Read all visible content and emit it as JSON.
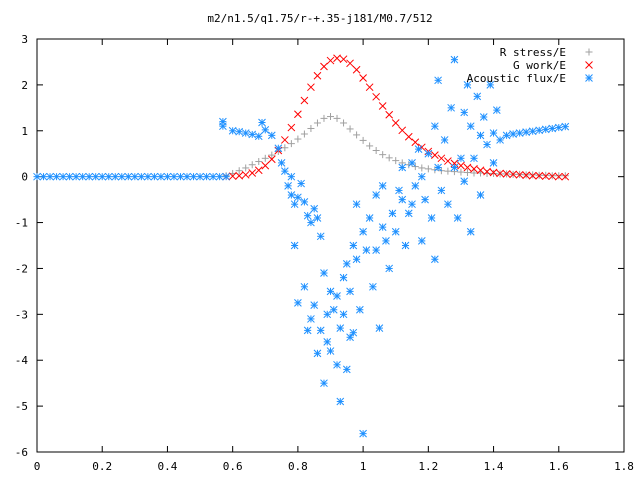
{
  "chart_data": {
    "type": "scatter",
    "title": "m2/n1.5/q1.75/r-+.35-j181/M0.7/512",
    "xlabel": "",
    "ylabel": "",
    "xlim": [
      0,
      1.8
    ],
    "ylim": [
      -6,
      3
    ],
    "x_ticks": [
      "0",
      "0.2",
      "0.4",
      "0.6",
      "0.8",
      "1",
      "1.2",
      "1.4",
      "1.6",
      "1.8"
    ],
    "y_ticks": [
      "3",
      "2",
      "1",
      "0",
      "-1",
      "-2",
      "-3",
      "-4",
      "-5",
      "-6"
    ],
    "grid": false,
    "legend_position": "top-right",
    "series": [
      {
        "name": "R stress/E",
        "marker": "plus",
        "color": "#a0a0a0",
        "points": [
          [
            0.58,
            0.02
          ],
          [
            0.6,
            0.07
          ],
          [
            0.62,
            0.13
          ],
          [
            0.64,
            0.19
          ],
          [
            0.66,
            0.26
          ],
          [
            0.68,
            0.33
          ],
          [
            0.7,
            0.4
          ],
          [
            0.72,
            0.47
          ],
          [
            0.74,
            0.55
          ],
          [
            0.76,
            0.63
          ],
          [
            0.78,
            0.72
          ],
          [
            0.8,
            0.82
          ],
          [
            0.82,
            0.93
          ],
          [
            0.84,
            1.05
          ],
          [
            0.86,
            1.17
          ],
          [
            0.88,
            1.27
          ],
          [
            0.9,
            1.31
          ],
          [
            0.92,
            1.27
          ],
          [
            0.94,
            1.17
          ],
          [
            0.96,
            1.04
          ],
          [
            0.98,
            0.91
          ],
          [
            1.0,
            0.79
          ],
          [
            1.02,
            0.67
          ],
          [
            1.04,
            0.57
          ],
          [
            1.06,
            0.48
          ],
          [
            1.08,
            0.41
          ],
          [
            1.1,
            0.35
          ],
          [
            1.12,
            0.3
          ],
          [
            1.14,
            0.26
          ],
          [
            1.16,
            0.22
          ],
          [
            1.18,
            0.19
          ],
          [
            1.2,
            0.17
          ],
          [
            1.22,
            0.15
          ],
          [
            1.24,
            0.13
          ],
          [
            1.26,
            0.12
          ],
          [
            1.28,
            0.11
          ],
          [
            1.3,
            0.1
          ],
          [
            1.32,
            0.09
          ],
          [
            1.34,
            0.08
          ],
          [
            1.36,
            0.08
          ],
          [
            1.38,
            0.07
          ],
          [
            1.4,
            0.07
          ],
          [
            1.42,
            0.06
          ],
          [
            1.44,
            0.06
          ],
          [
            1.46,
            0.05
          ],
          [
            1.48,
            0.05
          ],
          [
            1.5,
            0.04
          ],
          [
            1.52,
            0.04
          ],
          [
            1.54,
            0.03
          ],
          [
            1.56,
            0.03
          ],
          [
            1.58,
            0.02
          ],
          [
            1.6,
            0.02
          ],
          [
            1.62,
            0.02
          ]
        ]
      },
      {
        "name": "G work/E",
        "marker": "cross",
        "color": "#ff0000",
        "points": [
          [
            0.58,
            0.0
          ],
          [
            0.6,
            0.01
          ],
          [
            0.62,
            0.02
          ],
          [
            0.64,
            0.04
          ],
          [
            0.66,
            0.08
          ],
          [
            0.68,
            0.14
          ],
          [
            0.7,
            0.24
          ],
          [
            0.72,
            0.38
          ],
          [
            0.74,
            0.57
          ],
          [
            0.76,
            0.8
          ],
          [
            0.78,
            1.07
          ],
          [
            0.8,
            1.36
          ],
          [
            0.82,
            1.66
          ],
          [
            0.84,
            1.95
          ],
          [
            0.86,
            2.2
          ],
          [
            0.88,
            2.4
          ],
          [
            0.9,
            2.53
          ],
          [
            0.92,
            2.58
          ],
          [
            0.94,
            2.56
          ],
          [
            0.96,
            2.47
          ],
          [
            0.98,
            2.33
          ],
          [
            1.0,
            2.15
          ],
          [
            1.02,
            1.95
          ],
          [
            1.04,
            1.74
          ],
          [
            1.06,
            1.54
          ],
          [
            1.08,
            1.35
          ],
          [
            1.1,
            1.17
          ],
          [
            1.12,
            1.01
          ],
          [
            1.14,
            0.87
          ],
          [
            1.16,
            0.75
          ],
          [
            1.18,
            0.64
          ],
          [
            1.2,
            0.55
          ],
          [
            1.22,
            0.47
          ],
          [
            1.24,
            0.4
          ],
          [
            1.26,
            0.34
          ],
          [
            1.28,
            0.29
          ],
          [
            1.3,
            0.24
          ],
          [
            1.32,
            0.2
          ],
          [
            1.34,
            0.17
          ],
          [
            1.36,
            0.14
          ],
          [
            1.38,
            0.11
          ],
          [
            1.4,
            0.09
          ],
          [
            1.42,
            0.07
          ],
          [
            1.44,
            0.06
          ],
          [
            1.46,
            0.05
          ],
          [
            1.48,
            0.04
          ],
          [
            1.5,
            0.03
          ],
          [
            1.52,
            0.02
          ],
          [
            1.54,
            0.02
          ],
          [
            1.56,
            0.01
          ],
          [
            1.58,
            0.01
          ],
          [
            1.6,
            0.0
          ],
          [
            1.62,
            0.0
          ]
        ]
      },
      {
        "name": "Acoustic flux/E",
        "marker": "star",
        "color": "#1e90ff",
        "points": [
          [
            0.57,
            1.2
          ],
          [
            0.57,
            1.1
          ],
          [
            0.6,
            1.0
          ],
          [
            0.62,
            0.98
          ],
          [
            0.64,
            0.95
          ],
          [
            0.66,
            0.92
          ],
          [
            0.68,
            0.88
          ],
          [
            0.69,
            1.18
          ],
          [
            0.7,
            1.02
          ],
          [
            0.72,
            0.9
          ],
          [
            0.74,
            0.62
          ],
          [
            0.75,
            0.3
          ],
          [
            0.76,
            0.12
          ],
          [
            0.78,
            0.0
          ],
          [
            0.77,
            -0.2
          ],
          [
            0.78,
            -0.4
          ],
          [
            0.79,
            -0.6
          ],
          [
            0.8,
            -0.45
          ],
          [
            0.81,
            -0.15
          ],
          [
            0.82,
            -0.55
          ],
          [
            0.83,
            -0.85
          ],
          [
            0.84,
            -1.0
          ],
          [
            0.85,
            -0.7
          ],
          [
            0.86,
            -0.9
          ],
          [
            0.87,
            -1.3
          ],
          [
            0.79,
            -1.5
          ],
          [
            0.8,
            -2.75
          ],
          [
            0.82,
            -2.4
          ],
          [
            0.83,
            -3.35
          ],
          [
            0.84,
            -3.1
          ],
          [
            0.85,
            -2.8
          ],
          [
            0.86,
            -3.85
          ],
          [
            0.87,
            -3.35
          ],
          [
            0.88,
            -2.1
          ],
          [
            0.88,
            -4.5
          ],
          [
            0.89,
            -3.0
          ],
          [
            0.89,
            -3.6
          ],
          [
            0.9,
            -2.5
          ],
          [
            0.9,
            -3.8
          ],
          [
            0.91,
            -2.9
          ],
          [
            0.92,
            -4.1
          ],
          [
            0.92,
            -2.6
          ],
          [
            0.93,
            -3.3
          ],
          [
            0.93,
            -4.9
          ],
          [
            0.94,
            -3.0
          ],
          [
            0.94,
            -2.2
          ],
          [
            0.95,
            -4.2
          ],
          [
            0.95,
            -1.9
          ],
          [
            0.96,
            -2.5
          ],
          [
            0.96,
            -3.5
          ],
          [
            0.97,
            -1.5
          ],
          [
            0.97,
            -3.4
          ],
          [
            0.98,
            -1.8
          ],
          [
            0.98,
            -0.6
          ],
          [
            0.99,
            -2.9
          ],
          [
            1.0,
            -1.2
          ],
          [
            1.0,
            -5.6
          ],
          [
            1.01,
            -1.6
          ],
          [
            1.02,
            -0.9
          ],
          [
            1.03,
            -2.4
          ],
          [
            1.04,
            -0.4
          ],
          [
            1.04,
            -1.6
          ],
          [
            1.05,
            -3.3
          ],
          [
            1.06,
            -1.1
          ],
          [
            1.06,
            -0.2
          ],
          [
            1.07,
            -1.4
          ],
          [
            1.08,
            -2.0
          ],
          [
            1.09,
            -0.8
          ],
          [
            1.1,
            -1.2
          ],
          [
            1.11,
            -0.3
          ],
          [
            1.12,
            0.2
          ],
          [
            1.12,
            -0.5
          ],
          [
            1.13,
            -1.5
          ],
          [
            1.14,
            -0.8
          ],
          [
            1.15,
            0.3
          ],
          [
            1.15,
            -0.6
          ],
          [
            1.16,
            -0.2
          ],
          [
            1.17,
            0.6
          ],
          [
            1.18,
            -1.4
          ],
          [
            1.18,
            0.0
          ],
          [
            1.19,
            -0.5
          ],
          [
            1.2,
            0.5
          ],
          [
            1.21,
            -0.9
          ],
          [
            1.22,
            1.1
          ],
          [
            1.22,
            -1.8
          ],
          [
            1.23,
            2.1
          ],
          [
            1.23,
            0.2
          ],
          [
            1.24,
            -0.3
          ],
          [
            1.25,
            0.8
          ],
          [
            1.26,
            -0.6
          ],
          [
            1.27,
            1.5
          ],
          [
            1.28,
            0.2
          ],
          [
            1.28,
            2.55
          ],
          [
            1.29,
            -0.9
          ],
          [
            1.3,
            0.4
          ],
          [
            1.31,
            1.4
          ],
          [
            1.31,
            -0.1
          ],
          [
            1.32,
            2.0
          ],
          [
            1.33,
            -1.2
          ],
          [
            1.33,
            1.1
          ],
          [
            1.34,
            0.4
          ],
          [
            1.35,
            1.75
          ],
          [
            1.36,
            0.9
          ],
          [
            1.36,
            -0.4
          ],
          [
            1.37,
            1.3
          ],
          [
            1.38,
            0.7
          ],
          [
            1.39,
            2.0
          ],
          [
            1.4,
            0.95
          ],
          [
            1.4,
            0.3
          ],
          [
            1.41,
            1.45
          ],
          [
            1.42,
            0.8
          ],
          [
            1.44,
            0.9
          ],
          [
            1.46,
            0.93
          ],
          [
            1.48,
            0.95
          ],
          [
            1.5,
            0.97
          ],
          [
            1.52,
            0.99
          ],
          [
            1.54,
            1.01
          ],
          [
            1.56,
            1.03
          ],
          [
            1.58,
            1.05
          ],
          [
            1.6,
            1.07
          ],
          [
            1.62,
            1.09
          ],
          [
            0.0,
            0.0
          ],
          [
            0.02,
            0.0
          ],
          [
            0.04,
            0.0
          ],
          [
            0.06,
            0.0
          ],
          [
            0.08,
            0.0
          ],
          [
            0.1,
            0.0
          ],
          [
            0.12,
            0.0
          ],
          [
            0.14,
            0.0
          ],
          [
            0.16,
            0.0
          ],
          [
            0.18,
            0.0
          ],
          [
            0.2,
            0.0
          ],
          [
            0.22,
            0.0
          ],
          [
            0.24,
            0.0
          ],
          [
            0.26,
            0.0
          ],
          [
            0.28,
            0.0
          ],
          [
            0.3,
            0.0
          ],
          [
            0.32,
            0.0
          ],
          [
            0.34,
            0.0
          ],
          [
            0.36,
            0.0
          ],
          [
            0.38,
            0.0
          ],
          [
            0.4,
            0.0
          ],
          [
            0.42,
            0.0
          ],
          [
            0.44,
            0.0
          ],
          [
            0.46,
            0.0
          ],
          [
            0.48,
            0.0
          ],
          [
            0.5,
            0.0
          ],
          [
            0.52,
            0.0
          ],
          [
            0.54,
            0.0
          ],
          [
            0.56,
            0.0
          ],
          [
            0.58,
            0.0
          ]
        ]
      }
    ]
  }
}
